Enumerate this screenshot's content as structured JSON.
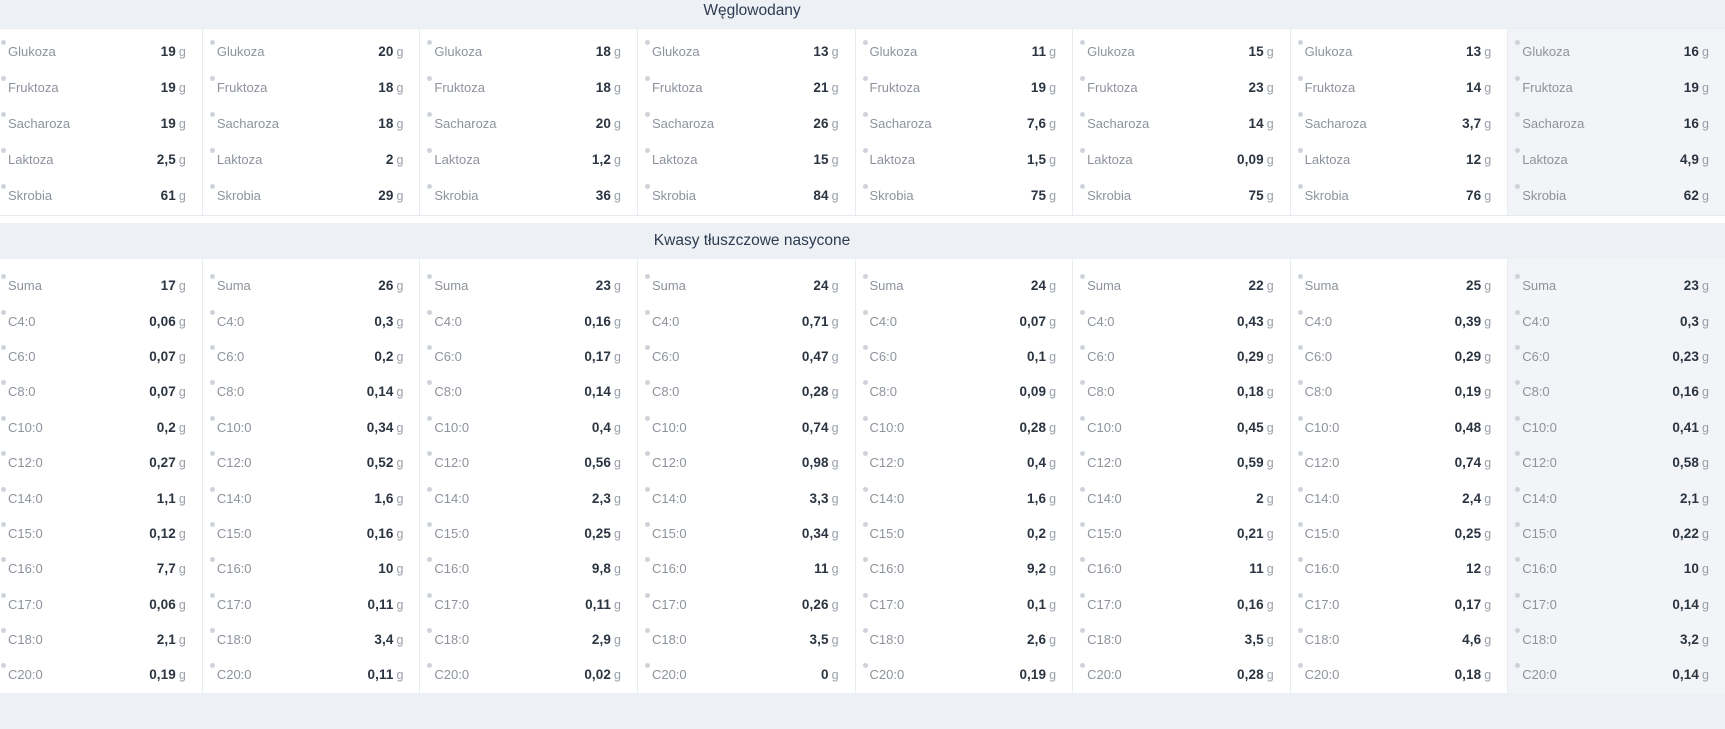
{
  "unit": "g",
  "highlighted_column_index": 7,
  "colors": {
    "section_band_bg": "#edf1f6",
    "section_title_text": "#2d3b50",
    "row_label_text": "#8d939c",
    "value_text": "#2b3440",
    "unit_text": "#989fa8",
    "column_divider": "#e7eaee",
    "highlighted_column_bg": "#f2f4f7",
    "info_dot": "#ced3d9"
  },
  "sections": [
    {
      "title": "Węglowodany",
      "rows": [
        "Glukoza",
        "Fruktoza",
        "Sacharoza",
        "Laktoza",
        "Skrobia"
      ],
      "columns": [
        [
          "19",
          "19",
          "19",
          "2,5",
          "61"
        ],
        [
          "20",
          "18",
          "18",
          "2",
          "29"
        ],
        [
          "18",
          "18",
          "20",
          "1,2",
          "36"
        ],
        [
          "13",
          "21",
          "26",
          "15",
          "84"
        ],
        [
          "11",
          "19",
          "7,6",
          "1,5",
          "75"
        ],
        [
          "15",
          "23",
          "14",
          "0,09",
          "75"
        ],
        [
          "13",
          "14",
          "3,7",
          "12",
          "76"
        ],
        [
          "16",
          "19",
          "16",
          "4,9",
          "62"
        ]
      ]
    },
    {
      "title": "Kwasy tłuszczowe nasycone",
      "rows": [
        "Suma",
        "C4:0",
        "C6:0",
        "C8:0",
        "C10:0",
        "C12:0",
        "C14:0",
        "C15:0",
        "C16:0",
        "C17:0",
        "C18:0",
        "C20:0"
      ],
      "columns": [
        [
          "17",
          "0,06",
          "0,07",
          "0,07",
          "0,2",
          "0,27",
          "1,1",
          "0,12",
          "7,7",
          "0,06",
          "2,1",
          "0,19"
        ],
        [
          "26",
          "0,3",
          "0,2",
          "0,14",
          "0,34",
          "0,52",
          "1,6",
          "0,16",
          "10",
          "0,11",
          "3,4",
          "0,11"
        ],
        [
          "23",
          "0,16",
          "0,17",
          "0,14",
          "0,4",
          "0,56",
          "2,3",
          "0,25",
          "9,8",
          "0,11",
          "2,9",
          "0,02"
        ],
        [
          "24",
          "0,71",
          "0,47",
          "0,28",
          "0,74",
          "0,98",
          "3,3",
          "0,34",
          "11",
          "0,26",
          "3,5",
          "0"
        ],
        [
          "24",
          "0,07",
          "0,1",
          "0,09",
          "0,28",
          "0,4",
          "1,6",
          "0,2",
          "9,2",
          "0,1",
          "2,6",
          "0,19"
        ],
        [
          "22",
          "0,43",
          "0,29",
          "0,18",
          "0,45",
          "0,59",
          "2",
          "0,21",
          "11",
          "0,16",
          "3,5",
          "0,28"
        ],
        [
          "25",
          "0,39",
          "0,29",
          "0,19",
          "0,48",
          "0,74",
          "2,4",
          "0,25",
          "12",
          "0,17",
          "4,6",
          "0,18"
        ],
        [
          "23",
          "0,3",
          "0,23",
          "0,16",
          "0,41",
          "0,58",
          "2,1",
          "0,22",
          "10",
          "0,14",
          "3,2",
          "0,14"
        ]
      ]
    }
  ]
}
